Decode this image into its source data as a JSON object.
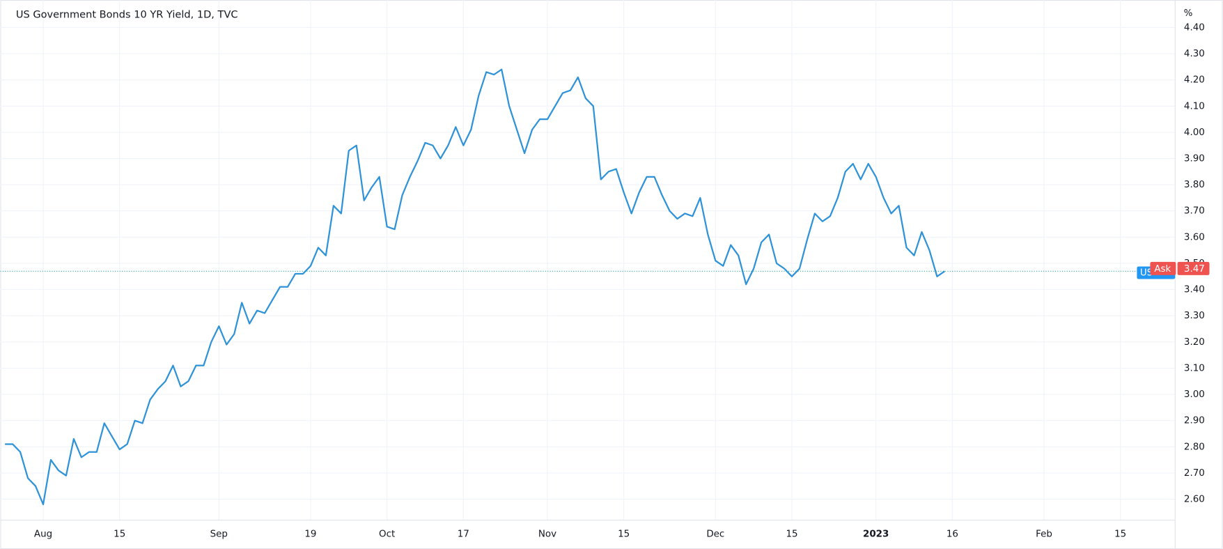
{
  "chart_data": {
    "type": "line",
    "title": "US Government Bonds 10 YR Yield, 1D, TVC",
    "y_unit": "%",
    "categories": [
      null,
      null,
      null,
      null,
      null,
      "Aug",
      null,
      null,
      null,
      null,
      null,
      null,
      null,
      null,
      null,
      "15",
      null,
      null,
      null,
      null,
      null,
      null,
      null,
      null,
      null,
      null,
      null,
      null,
      "Sep",
      null,
      null,
      null,
      null,
      null,
      null,
      null,
      null,
      null,
      null,
      null,
      "19",
      null,
      null,
      null,
      null,
      null,
      null,
      null,
      null,
      null,
      "Oct",
      null,
      null,
      null,
      null,
      null,
      null,
      null,
      null,
      null,
      "17",
      null,
      null,
      null,
      null,
      null,
      null,
      null,
      null,
      null,
      null,
      "Nov",
      null,
      null,
      null,
      null,
      null,
      null,
      null,
      null,
      null,
      "15",
      null,
      null,
      null,
      null,
      null,
      null,
      null,
      null,
      null,
      null,
      null,
      "Dec",
      null,
      null,
      null,
      null,
      null,
      null,
      null,
      null,
      null,
      "15",
      null,
      null,
      null,
      null,
      null,
      null,
      null,
      null,
      null,
      null,
      "2023",
      null,
      null,
      null,
      null,
      null,
      null,
      null,
      null,
      null,
      "16",
      null,
      null,
      null,
      null,
      null,
      null,
      null,
      null,
      null,
      null,
      null,
      "Feb",
      null,
      null,
      null,
      null,
      null,
      null,
      null,
      null,
      null,
      "15",
      null,
      null,
      null,
      null,
      null,
      null,
      null
    ],
    "series": [
      {
        "name": "US10Y",
        "color": "#2e92d9",
        "values": [
          2.81,
          2.81,
          2.78,
          2.68,
          2.65,
          2.58,
          2.75,
          2.71,
          2.69,
          2.83,
          2.76,
          2.78,
          2.78,
          2.89,
          2.84,
          2.79,
          2.81,
          2.9,
          2.89,
          2.98,
          3.02,
          3.05,
          3.11,
          3.03,
          3.05,
          3.11,
          3.11,
          3.2,
          3.26,
          3.19,
          3.23,
          3.35,
          3.27,
          3.32,
          3.31,
          3.36,
          3.41,
          3.41,
          3.46,
          3.46,
          3.49,
          3.56,
          3.53,
          3.72,
          3.69,
          3.93,
          3.95,
          3.74,
          3.79,
          3.83,
          3.64,
          3.63,
          3.76,
          3.83,
          3.89,
          3.96,
          3.95,
          3.9,
          3.95,
          4.02,
          3.95,
          4.01,
          4.14,
          4.23,
          4.22,
          4.24,
          4.1,
          4.01,
          3.92,
          4.01,
          4.05,
          4.05,
          4.1,
          4.15,
          4.16,
          4.21,
          4.13,
          4.1,
          3.82,
          3.85,
          3.86,
          3.77,
          3.69,
          3.77,
          3.83,
          3.83,
          3.76,
          3.7,
          3.67,
          3.69,
          3.68,
          3.75,
          3.61,
          3.51,
          3.49,
          3.57,
          3.53,
          3.42,
          3.48,
          3.58,
          3.61,
          3.5,
          3.48,
          3.45,
          3.48,
          3.59,
          3.69,
          3.66,
          3.68,
          3.75,
          3.85,
          3.88,
          3.82,
          3.88,
          3.83,
          3.75,
          3.69,
          3.72,
          3.56,
          3.53,
          3.62,
          3.55,
          3.45,
          3.47,
          null,
          null,
          null,
          null,
          null,
          null,
          null,
          null,
          null,
          null,
          null,
          null,
          null,
          null,
          null,
          null,
          null,
          null,
          null,
          null,
          null,
          null,
          null,
          null,
          null,
          null,
          null,
          null,
          null,
          null
        ]
      }
    ],
    "symbol_tag": "US",
    "price_tag": "Ask",
    "last_price_color": "#ef5350",
    "symbol_tag_color": "#2196f3",
    "ylim": [
      2.52,
      4.49
    ],
    "yticks": [
      {
        "value": 2.6,
        "label": "2.60"
      },
      {
        "value": 2.7,
        "label": "2.70"
      },
      {
        "value": 2.8,
        "label": "2.80"
      },
      {
        "value": 2.9,
        "label": "2.90"
      },
      {
        "value": 3.0,
        "label": "3.00"
      },
      {
        "value": 3.1,
        "label": "3.10"
      },
      {
        "value": 3.2,
        "label": "3.20"
      },
      {
        "value": 3.3,
        "label": "3.30"
      },
      {
        "value": 3.4,
        "label": "3.40"
      },
      {
        "value": 3.5,
        "label": "3.50"
      },
      {
        "value": 3.6,
        "label": "3.60"
      },
      {
        "value": 3.7,
        "label": "3.70"
      },
      {
        "value": 3.8,
        "label": "3.80"
      },
      {
        "value": 3.9,
        "label": "3.90"
      },
      {
        "value": 4.0,
        "label": "4.00"
      },
      {
        "value": 4.1,
        "label": "4.10"
      },
      {
        "value": 4.2,
        "label": "4.20"
      },
      {
        "value": 4.3,
        "label": "4.30"
      },
      {
        "value": 4.4,
        "label": "4.40"
      }
    ],
    "grid": true
  }
}
